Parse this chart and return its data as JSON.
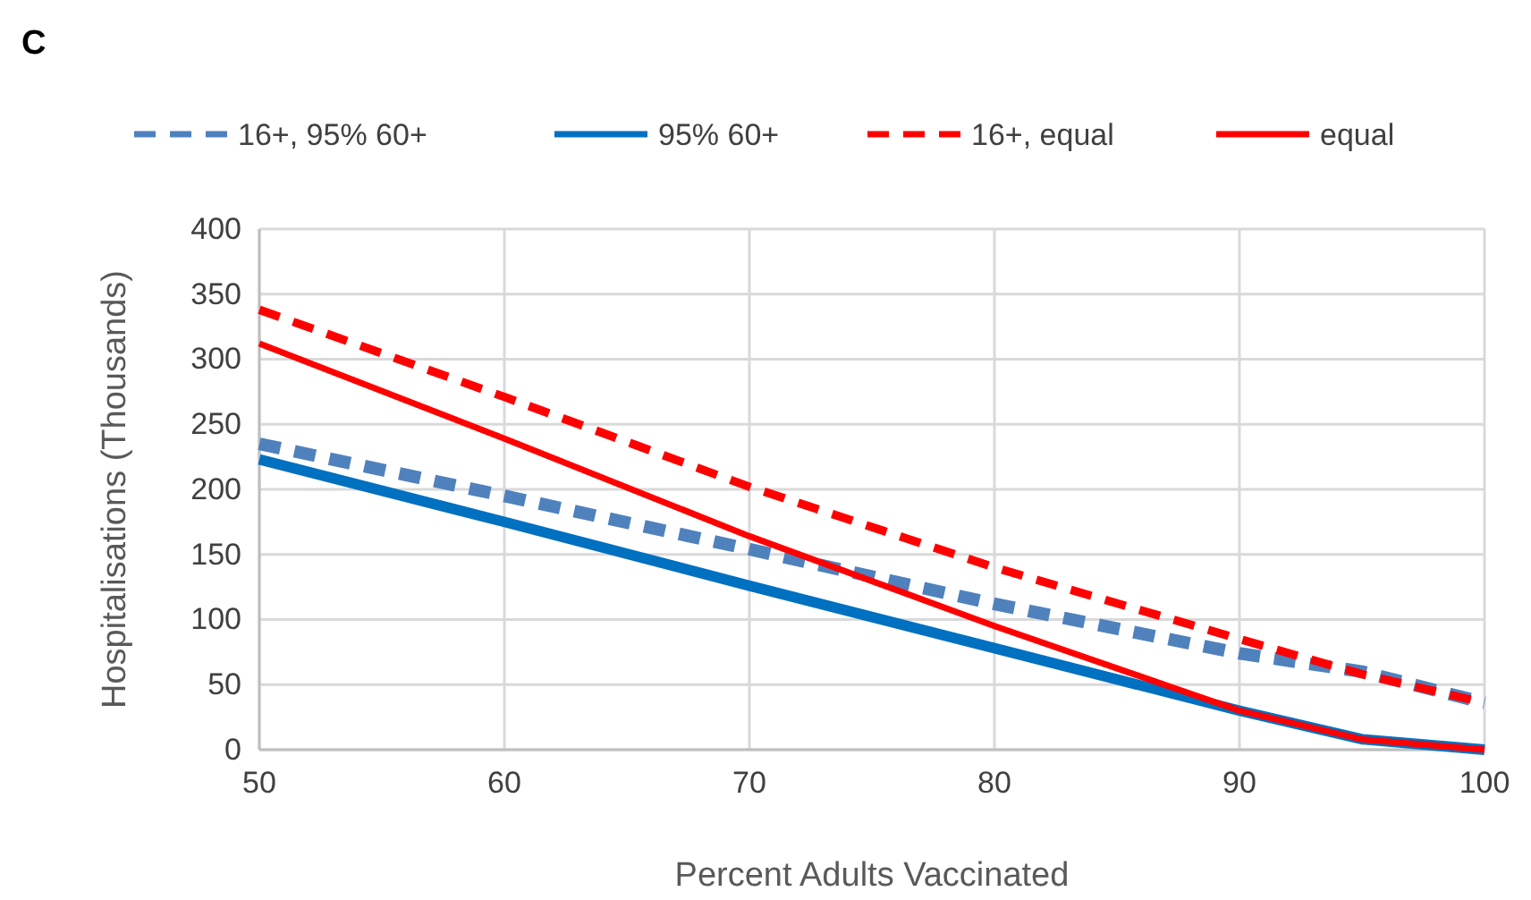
{
  "chart_data": {
    "type": "line",
    "title": "C",
    "xlabel": "Percent Adults Vaccinated",
    "ylabel": "Hospitalisations (Thousands)",
    "x": [
      50,
      60,
      70,
      80,
      90,
      95,
      100
    ],
    "series": [
      {
        "name": "16+, 95% 60+",
        "color": "#4f81bd",
        "line_style": "dashed",
        "values": [
          235,
          195,
          154,
          112,
          74,
          60,
          36
        ]
      },
      {
        "name": "95% 60+",
        "color": "#0070c0",
        "line_style": "solid",
        "values": [
          223,
          175,
          126,
          78,
          30,
          8,
          0
        ]
      },
      {
        "name": "16+, equal",
        "color": "#ff0000",
        "line_style": "dashed",
        "values": [
          338,
          271,
          202,
          140,
          85,
          58,
          36
        ]
      },
      {
        "name": "equal",
        "color": "#ff0000",
        "line_style": "solid",
        "values": [
          312,
          239,
          164,
          95,
          30,
          8,
          0
        ]
      }
    ],
    "xlim": [
      50,
      100
    ],
    "xticks": [
      50,
      60,
      70,
      80,
      90,
      100
    ],
    "ylim": [
      0,
      400
    ],
    "yticks": [
      0,
      50,
      100,
      150,
      200,
      250,
      300,
      350,
      400
    ],
    "grid": true,
    "legend": "top"
  }
}
